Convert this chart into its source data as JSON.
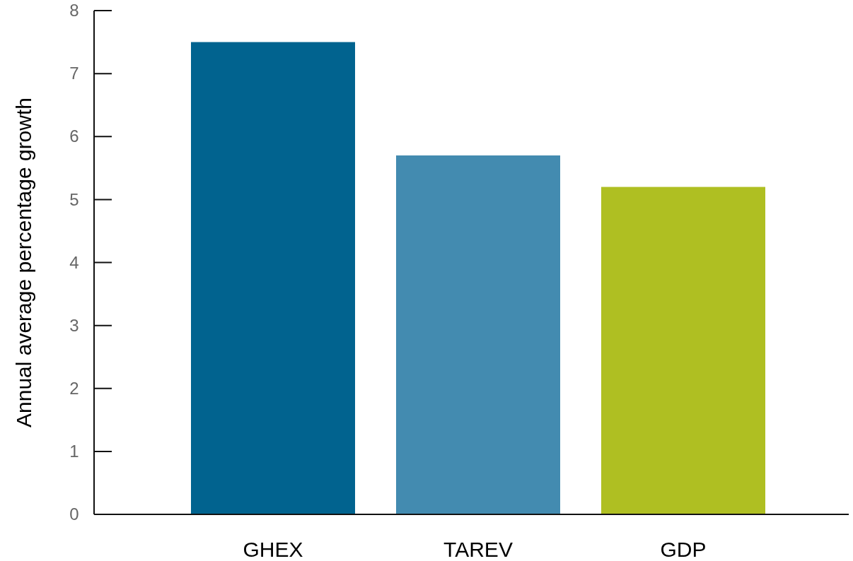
{
  "chart_data": {
    "type": "bar",
    "ylabel": "Annual average percentage growth",
    "categories": [
      "GHEX",
      "TAREV",
      "GDP"
    ],
    "values": [
      7.5,
      5.7,
      5.2
    ],
    "colors": [
      "#01638f",
      "#438bb0",
      "#afbf22"
    ],
    "ylim": [
      0,
      8
    ],
    "yticks": [
      0,
      1,
      2,
      3,
      4,
      5,
      6,
      7,
      8
    ],
    "grid": false
  }
}
